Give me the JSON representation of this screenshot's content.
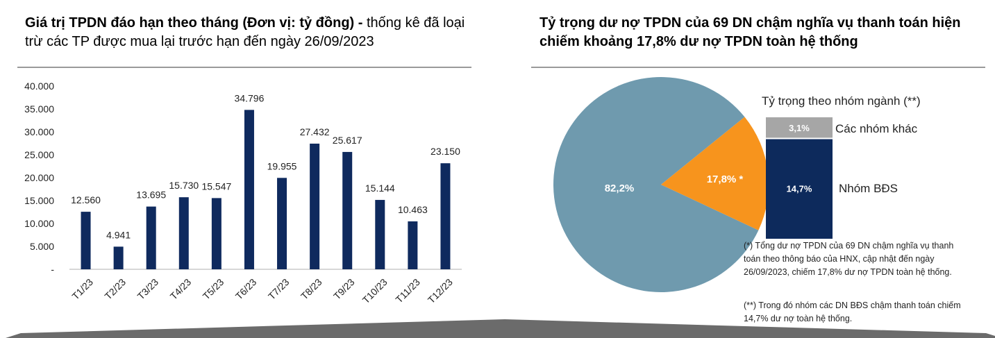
{
  "left_title": {
    "bold": "Giá trị TPDN đáo hạn theo tháng (Đơn vị: tỷ đồng) -",
    "normal": " thống kê đã loại trừ các TP được mua lại trước hạn đến ngày 26/09/2023"
  },
  "right_title": "Tỷ trọng dư nợ TPDN của 69 DN chậm nghĩa vụ thanh toán hiện chiếm khoảng 17,8% dư nợ TPDN toàn hệ thống",
  "colors": {
    "bar": "#0f2a5e",
    "pie_main": "#6f9aae",
    "pie_slice": "#f7941d",
    "stack_top": "#a6a6a6",
    "stack_bottom": "#0d2a5c"
  },
  "chart_data": [
    {
      "type": "bar",
      "categories": [
        "T1/23",
        "T2/23",
        "T3/23",
        "T4/23",
        "T5/23",
        "T6/23",
        "T7/23",
        "T8/23",
        "T9/23",
        "T10/23",
        "T11/23",
        "T12/23"
      ],
      "values": [
        12560,
        4941,
        13695,
        15730,
        15547,
        34796,
        19955,
        27432,
        25617,
        15144,
        10463,
        23150
      ],
      "value_labels": [
        "12.560",
        "4.941",
        "13.695",
        "15.730",
        "15.547",
        "34.796",
        "19.955",
        "27.432",
        "25.617",
        "15.144",
        "10.463",
        "23.150"
      ],
      "ylim": [
        0,
        40000
      ],
      "yticks": [
        0,
        5000,
        10000,
        15000,
        20000,
        25000,
        30000,
        35000,
        40000
      ],
      "ytick_labels": [
        "-",
        "5.000",
        "10.000",
        "15.000",
        "20.000",
        "25.000",
        "30.000",
        "35.000",
        "40.000"
      ],
      "grid": false
    },
    {
      "type": "pie",
      "values": [
        82.2,
        17.8
      ],
      "labels": [
        "82,2%",
        "17,8% *"
      ]
    },
    {
      "type": "bar",
      "title": "Tỷ trọng theo nhóm ngành (**)",
      "stacked": true,
      "series": [
        {
          "name": "Nhóm BĐS",
          "values": [
            14.7
          ],
          "label": "14,7%"
        },
        {
          "name": "Các nhóm khác",
          "values": [
            3.1
          ],
          "label": "3,1%"
        }
      ]
    }
  ],
  "notes": [
    "(*) Tổng dư nợ TPDN của 69 DN chậm nghĩa vụ thanh toán theo thông báo của HNX, cập nhật đến ngày 26/09/2023, chiếm 17,8% dư nợ TPDN toàn hệ thống.",
    "(**) Trong đó nhóm các DN BĐS chậm thanh toán chiếm 14,7% dư nợ toàn hệ thống."
  ]
}
